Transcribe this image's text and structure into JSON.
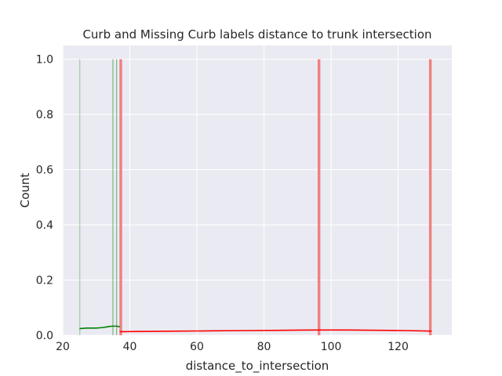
{
  "chart_data": {
    "type": "bar",
    "title": "Curb and Missing Curb labels distance to trunk intersection",
    "xlabel": "distance_to_intersection",
    "ylabel": "Count",
    "xlim": [
      20,
      136
    ],
    "ylim": [
      0,
      1.05
    ],
    "xticks": [
      "20",
      "40",
      "60",
      "80",
      "100",
      "120"
    ],
    "yticks": [
      "0.0",
      "0.2",
      "0.4",
      "0.6",
      "0.8",
      "1.0"
    ],
    "grid": true,
    "series": [
      {
        "color": "#008000",
        "bars": [
          {
            "x0": 25.0,
            "x1": 25.2,
            "count": 1
          },
          {
            "x0": 34.8,
            "x1": 35.1,
            "count": 1
          },
          {
            "x0": 35.9,
            "x1": 36.2,
            "count": 1
          }
        ],
        "kde": {
          "x": [
            25,
            26,
            27,
            28,
            29,
            30,
            31,
            32,
            33,
            34,
            35,
            36,
            37
          ],
          "y": [
            0.024,
            0.025,
            0.026,
            0.026,
            0.026,
            0.026,
            0.027,
            0.028,
            0.03,
            0.032,
            0.033,
            0.033,
            0.031
          ]
        }
      },
      {
        "color": "#f08080",
        "kde_color": "#ff0000",
        "bars": [
          {
            "x0": 36.9,
            "x1": 37.7,
            "count": 1
          },
          {
            "x0": 96.0,
            "x1": 96.8,
            "count": 1
          },
          {
            "x0": 129.2,
            "x1": 130.0,
            "count": 1
          }
        ],
        "kde": {
          "x": [
            37,
            45,
            55,
            65,
            75,
            85,
            95,
            105,
            115,
            122,
            130
          ],
          "y": [
            0.013,
            0.014,
            0.015,
            0.016,
            0.017,
            0.018,
            0.019,
            0.019,
            0.018,
            0.017,
            0.015
          ]
        }
      }
    ]
  }
}
